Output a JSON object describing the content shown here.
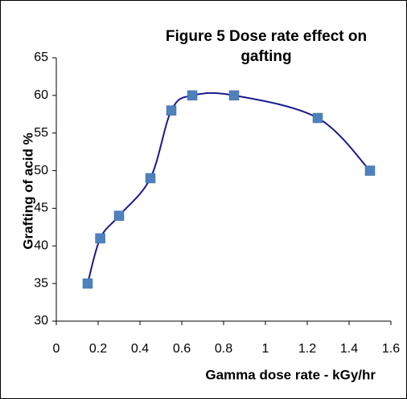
{
  "chart_data": {
    "type": "line",
    "title": "Figure 5 Dose rate effect on gafting",
    "xlabel": "Gamma dose rate - kGy/hr",
    "ylabel": "Grafting of acid %",
    "x": [
      0.15,
      0.21,
      0.3,
      0.45,
      0.55,
      0.65,
      0.85,
      1.25,
      1.5
    ],
    "series": [
      {
        "color": "#1a1a8c",
        "marker_color": "#4f81bd",
        "values": [
          35,
          41,
          44,
          49,
          58,
          60,
          60,
          57,
          50
        ]
      }
    ],
    "xlim": [
      0,
      1.6
    ],
    "xticks": [
      0,
      0.2,
      0.4,
      0.6,
      0.8,
      1,
      1.2,
      1.4,
      1.6
    ],
    "ylim": [
      30,
      65
    ],
    "yticks": [
      30,
      35,
      40,
      45,
      50,
      55,
      60,
      65
    ],
    "smooth": true,
    "grid": false
  }
}
